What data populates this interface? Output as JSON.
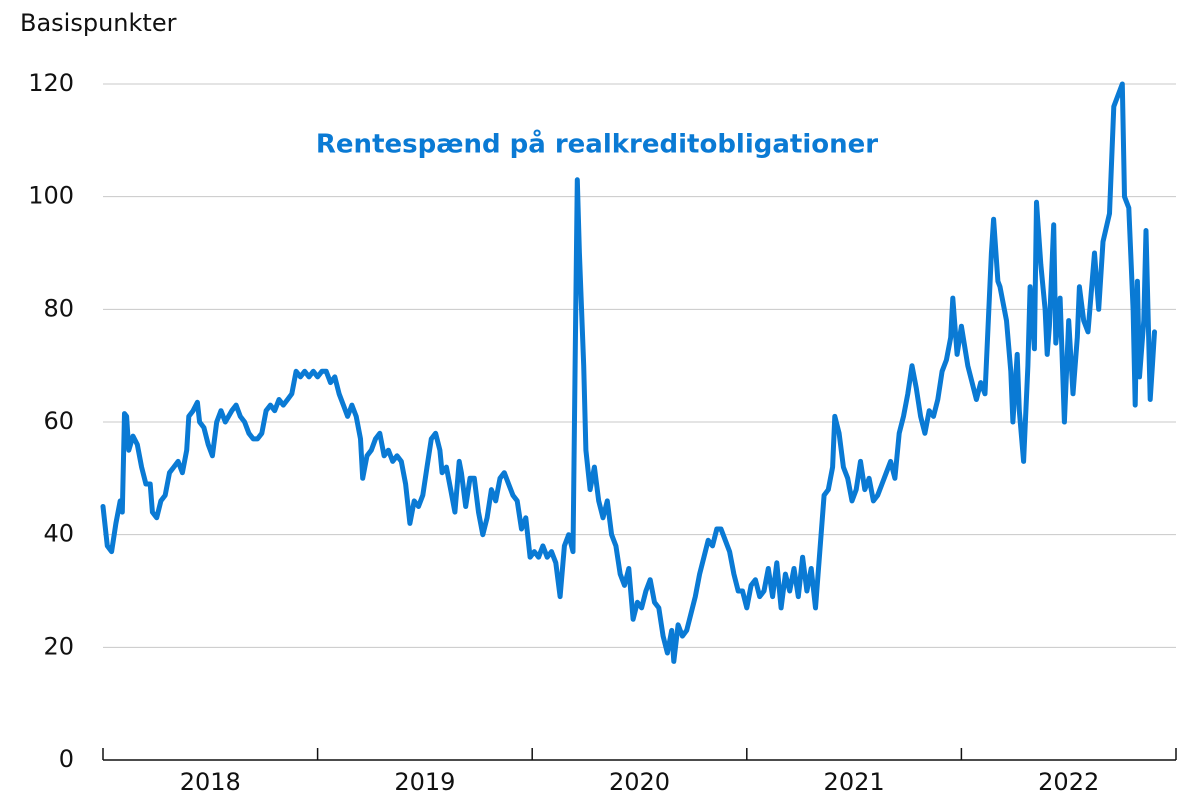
{
  "chart_data": {
    "type": "line",
    "y_label": "Basispunkter",
    "annotation": "Rentespænd på realkreditobligationer",
    "xlim": [
      2018,
      2023
    ],
    "xticks": [
      2018,
      2019,
      2020,
      2021,
      2022,
      2023
    ],
    "ylim": [
      0,
      120
    ],
    "yticks": [
      0,
      20,
      40,
      60,
      80,
      100,
      120
    ],
    "grid": true,
    "x": [
      2018.0,
      2018.02,
      2018.04,
      2018.06,
      2018.08,
      2018.09,
      2018.1,
      2018.11,
      2018.12,
      2018.14,
      2018.16,
      2018.18,
      2018.2,
      2018.22,
      2018.23,
      2018.25,
      2018.27,
      2018.29,
      2018.31,
      2018.33,
      2018.35,
      2018.37,
      2018.39,
      2018.4,
      2018.42,
      2018.44,
      2018.45,
      2018.47,
      2018.49,
      2018.51,
      2018.53,
      2018.55,
      2018.57,
      2018.6,
      2018.62,
      2018.64,
      2018.66,
      2018.68,
      2018.7,
      2018.72,
      2018.74,
      2018.76,
      2018.78,
      2018.8,
      2018.82,
      2018.84,
      2018.86,
      2018.88,
      2018.9,
      2018.92,
      2018.94,
      2018.96,
      2018.98,
      2019.0,
      2019.02,
      2019.04,
      2019.06,
      2019.08,
      2019.1,
      2019.12,
      2019.14,
      2019.16,
      2019.18,
      2019.2,
      2019.21,
      2019.23,
      2019.25,
      2019.27,
      2019.29,
      2019.31,
      2019.33,
      2019.35,
      2019.37,
      2019.39,
      2019.41,
      2019.43,
      2019.45,
      2019.47,
      2019.49,
      2019.51,
      2019.53,
      2019.55,
      2019.57,
      2019.58,
      2019.6,
      2019.62,
      2019.64,
      2019.66,
      2019.67,
      2019.69,
      2019.71,
      2019.73,
      2019.75,
      2019.77,
      2019.79,
      2019.81,
      2019.83,
      2019.85,
      2019.87,
      2019.89,
      2019.91,
      2019.93,
      2019.95,
      2019.97,
      2019.99,
      2020.01,
      2020.03,
      2020.05,
      2020.07,
      2020.09,
      2020.11,
      2020.13,
      2020.15,
      2020.17,
      2020.19,
      2020.2,
      2020.21,
      2020.22,
      2020.24,
      2020.25,
      2020.27,
      2020.29,
      2020.31,
      2020.33,
      2020.35,
      2020.37,
      2020.39,
      2020.41,
      2020.43,
      2020.45,
      2020.47,
      2020.49,
      2020.51,
      2020.53,
      2020.55,
      2020.57,
      2020.59,
      2020.61,
      2020.63,
      2020.65,
      2020.66,
      2020.68,
      2020.7,
      2020.72,
      2020.74,
      2020.76,
      2020.78,
      2020.8,
      2020.82,
      2020.84,
      2020.86,
      2020.88,
      2020.9,
      2020.92,
      2020.94,
      2020.96,
      2020.98,
      2021.0,
      2021.02,
      2021.04,
      2021.06,
      2021.08,
      2021.1,
      2021.12,
      2021.14,
      2021.16,
      2021.18,
      2021.2,
      2021.22,
      2021.24,
      2021.26,
      2021.28,
      2021.3,
      2021.32,
      2021.34,
      2021.36,
      2021.38,
      2021.4,
      2021.41,
      2021.43,
      2021.45,
      2021.47,
      2021.49,
      2021.51,
      2021.53,
      2021.55,
      2021.57,
      2021.59,
      2021.61,
      2021.63,
      2021.65,
      2021.67,
      2021.69,
      2021.71,
      2021.73,
      2021.75,
      2021.77,
      2021.79,
      2021.81,
      2021.83,
      2021.85,
      2021.87,
      2021.89,
      2021.91,
      2021.93,
      2021.95,
      2021.96,
      2021.98,
      2022.0,
      2022.03,
      2022.07,
      2022.09,
      2022.11,
      2022.14,
      2022.15,
      2022.17,
      2022.18,
      2022.21,
      2022.23,
      2022.24,
      2022.26,
      2022.27,
      2022.29,
      2022.31,
      2022.32,
      2022.34,
      2022.35,
      2022.37,
      2022.39,
      2022.4,
      2022.41,
      2022.43,
      2022.44,
      2022.46,
      2022.48,
      2022.5,
      2022.52,
      2022.54,
      2022.55,
      2022.57,
      2022.59,
      2022.62,
      2022.64,
      2022.66,
      2022.69,
      2022.71,
      2022.75,
      2022.76,
      2022.78,
      2022.8,
      2022.81,
      2022.82,
      2022.83,
      2022.85,
      2022.86,
      2022.88,
      2022.89,
      2022.9
    ],
    "series": [
      {
        "name": "Rentespænd på realkreditobligationer",
        "color": "#0a7ad4",
        "values": [
          45,
          38,
          37,
          42,
          46,
          44,
          61.5,
          61,
          55,
          57.5,
          56,
          52,
          49,
          49,
          44,
          43,
          46,
          47,
          51,
          52,
          53,
          51,
          55,
          61,
          62,
          63.5,
          60,
          59,
          56,
          54,
          60,
          62,
          60,
          62,
          63,
          61,
          60,
          58,
          57,
          57,
          58,
          62,
          63,
          62,
          64,
          63,
          64,
          65,
          69,
          68,
          69,
          68,
          69,
          68,
          69,
          69,
          67,
          68,
          65,
          63,
          61,
          63,
          61,
          57,
          50,
          54,
          55,
          57,
          58,
          54,
          55,
          53,
          54,
          53,
          49,
          42,
          46,
          45,
          47,
          52,
          57,
          58,
          55,
          51,
          52,
          48,
          44,
          53,
          51,
          45,
          50,
          50,
          44,
          40,
          43,
          48,
          46,
          50,
          51,
          49,
          47,
          46,
          41,
          43,
          36,
          37,
          36,
          38,
          36,
          37,
          35,
          29,
          38,
          40,
          37,
          70,
          103,
          90,
          70,
          55,
          48,
          52,
          46,
          43,
          46,
          40,
          38,
          33,
          31,
          34,
          25,
          28,
          27,
          30,
          32,
          28,
          27,
          22,
          19,
          23,
          17.5,
          24,
          22,
          23,
          26,
          29,
          33,
          36,
          39,
          38,
          41,
          41,
          39,
          37,
          33,
          30,
          30,
          27,
          31,
          32,
          29,
          30,
          34,
          29,
          35,
          27,
          33,
          30,
          34,
          29,
          36,
          30,
          34,
          27,
          37,
          47,
          48,
          52,
          61,
          58,
          52,
          50,
          46,
          48,
          53,
          48,
          50,
          46,
          47,
          49,
          51,
          53,
          50,
          58,
          61,
          65,
          70,
          66,
          61,
          58,
          62,
          61,
          64,
          69,
          71,
          75,
          82,
          72,
          77,
          70,
          64,
          67,
          65,
          90,
          96,
          85,
          84,
          78,
          69,
          60,
          72,
          62,
          53,
          70,
          84,
          73,
          99,
          88,
          80,
          72,
          77,
          95,
          74,
          82,
          60,
          78,
          65,
          75,
          84,
          78,
          76,
          90,
          80,
          92,
          97,
          116,
          120,
          100,
          98,
          80,
          63,
          85,
          68,
          78,
          94,
          64,
          70,
          76
        ]
      }
    ]
  }
}
